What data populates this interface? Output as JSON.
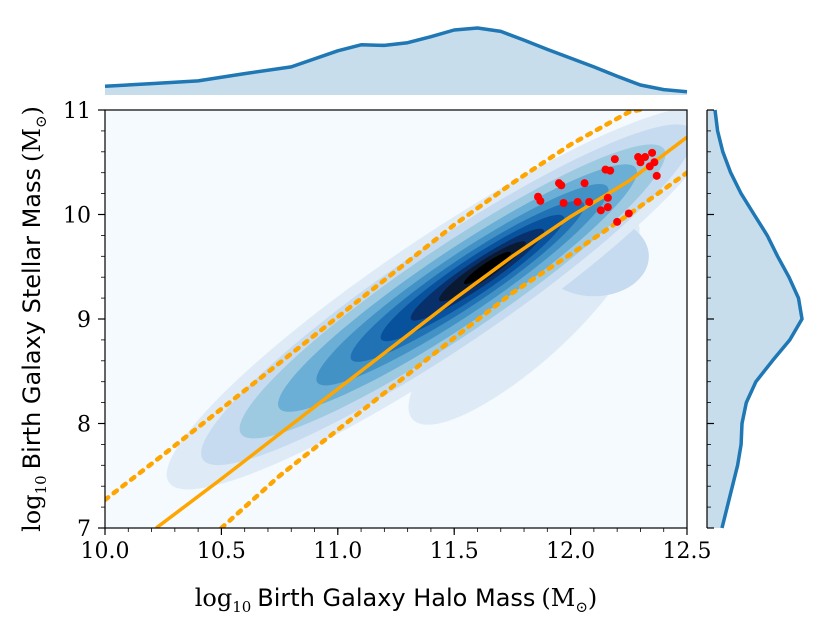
{
  "chart_data": {
    "type": "scatter",
    "title": "",
    "xlabel_math": "log",
    "xlabel_sub": "10",
    "xlabel_text": "Birth Galaxy Halo Mass",
    "xlabel_unit": "(M",
    "ylabel_math": "log",
    "ylabel_sub": "10",
    "ylabel_text": "Birth Galaxy Stellar Mass",
    "ylabel_unit": "(M",
    "sun_symbol": "⊙",
    "close_paren": ")",
    "xlim": [
      10.0,
      12.5
    ],
    "ylim": [
      7,
      11
    ],
    "xticks": [
      "10.0",
      "10.5",
      "11.0",
      "11.5",
      "12.0",
      "12.5"
    ],
    "xtick_values": [
      10.0,
      10.5,
      11.0,
      11.5,
      12.0,
      12.5
    ],
    "yticks": [
      "7",
      "8",
      "9",
      "10",
      "11"
    ],
    "ytick_values": [
      7,
      8,
      9,
      10,
      11
    ],
    "grid": false,
    "colors": {
      "fit_line": "#ffa500",
      "points": "#ff0000",
      "density": "#1f77b4",
      "marginal": "#1f77b4"
    },
    "fit_line": {
      "x": [
        10.22,
        10.5,
        10.75,
        11.0,
        11.25,
        11.5,
        11.75,
        12.0,
        12.25,
        12.5
      ],
      "y": [
        7.0,
        7.47,
        7.9,
        8.33,
        8.76,
        9.19,
        9.6,
        9.98,
        10.32,
        10.74
      ]
    },
    "fit_upper": {
      "x": [
        10.0,
        10.25,
        10.5,
        10.75,
        11.0,
        11.25,
        11.5,
        11.75,
        12.0,
        12.25,
        12.4
      ],
      "y": [
        7.27,
        7.7,
        8.14,
        8.58,
        9.02,
        9.46,
        9.9,
        10.3,
        10.67,
        10.98,
        11.05
      ]
    },
    "fit_lower": {
      "x": [
        10.5,
        10.75,
        11.0,
        11.25,
        11.5,
        11.75,
        12.0,
        12.25,
        12.5
      ],
      "y": [
        7.0,
        7.5,
        7.94,
        8.38,
        8.82,
        9.25,
        9.62,
        10.0,
        10.4
      ]
    },
    "points": [
      {
        "x": 11.86,
        "y": 10.17
      },
      {
        "x": 11.87,
        "y": 10.13
      },
      {
        "x": 11.95,
        "y": 10.3
      },
      {
        "x": 11.96,
        "y": 10.28
      },
      {
        "x": 11.97,
        "y": 10.11
      },
      {
        "x": 12.03,
        "y": 10.12
      },
      {
        "x": 12.06,
        "y": 10.3
      },
      {
        "x": 12.08,
        "y": 10.12
      },
      {
        "x": 12.13,
        "y": 10.04
      },
      {
        "x": 12.15,
        "y": 10.43
      },
      {
        "x": 12.16,
        "y": 10.16
      },
      {
        "x": 12.16,
        "y": 10.07
      },
      {
        "x": 12.17,
        "y": 10.42
      },
      {
        "x": 12.19,
        "y": 10.53
      },
      {
        "x": 12.2,
        "y": 9.93
      },
      {
        "x": 12.25,
        "y": 10.01
      },
      {
        "x": 12.29,
        "y": 10.55
      },
      {
        "x": 12.3,
        "y": 10.5
      },
      {
        "x": 12.32,
        "y": 10.55
      },
      {
        "x": 12.34,
        "y": 10.46
      },
      {
        "x": 12.35,
        "y": 10.59
      },
      {
        "x": 12.36,
        "y": 10.5
      },
      {
        "x": 12.37,
        "y": 10.37
      }
    ],
    "density_ridge": [
      {
        "x": 10.1,
        "y": 7.05
      },
      {
        "x": 10.4,
        "y": 7.45
      },
      {
        "x": 10.7,
        "y": 7.95
      },
      {
        "x": 10.95,
        "y": 8.4
      },
      {
        "x": 11.2,
        "y": 8.8
      },
      {
        "x": 11.45,
        "y": 9.2
      },
      {
        "x": 11.7,
        "y": 9.55
      },
      {
        "x": 11.95,
        "y": 9.9
      },
      {
        "x": 12.2,
        "y": 10.2
      }
    ],
    "x_marginal": {
      "x": [
        10.0,
        10.2,
        10.4,
        10.6,
        10.8,
        11.0,
        11.1,
        11.2,
        11.3,
        11.4,
        11.5,
        11.6,
        11.7,
        11.8,
        11.9,
        12.0,
        12.1,
        12.2,
        12.3,
        12.4,
        12.5
      ],
      "density": [
        0.13,
        0.17,
        0.21,
        0.32,
        0.42,
        0.66,
        0.75,
        0.74,
        0.78,
        0.87,
        0.97,
        1.0,
        0.95,
        0.82,
        0.68,
        0.55,
        0.42,
        0.28,
        0.15,
        0.08,
        0.05
      ]
    },
    "y_marginal": {
      "y": [
        7.0,
        7.2,
        7.4,
        7.6,
        7.8,
        8.0,
        8.2,
        8.4,
        8.6,
        8.8,
        9.0,
        9.2,
        9.4,
        9.6,
        9.8,
        10.0,
        10.2,
        10.4,
        10.6,
        10.8,
        11.0
      ],
      "density": [
        0.08,
        0.14,
        0.2,
        0.26,
        0.3,
        0.31,
        0.36,
        0.47,
        0.66,
        0.86,
        1.0,
        0.96,
        0.85,
        0.72,
        0.6,
        0.45,
        0.3,
        0.18,
        0.09,
        0.03,
        0.0
      ]
    }
  }
}
